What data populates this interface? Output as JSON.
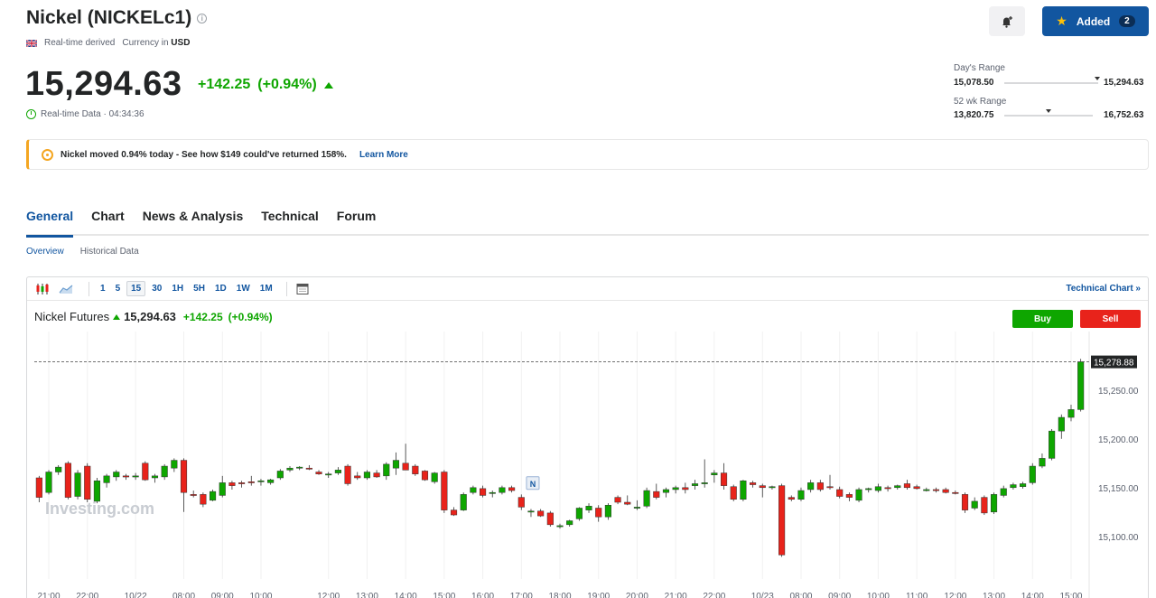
{
  "header": {
    "title": "Nickel (NICKELc1)",
    "realtime_label": "Real-time derived",
    "currency_label": "Currency in",
    "currency": "USD",
    "price": "15,294.63",
    "change": "+142.25",
    "change_pct": "(+0.94%)",
    "realtime_data": "Real-time Data · 04:34:36"
  },
  "actions": {
    "added_label": "Added",
    "added_count": "2"
  },
  "ranges": {
    "day_label": "Day's Range",
    "day_low": "15,078.50",
    "day_high": "15,294.63",
    "day_position": 0.99,
    "wk52_label": "52 wk Range",
    "wk52_low": "13,820.75",
    "wk52_high": "16,752.63",
    "wk52_position": 0.5
  },
  "banner": {
    "text": "Nickel moved 0.94% today - See how $149 could've returned 158%.",
    "link": "Learn More"
  },
  "tabs": [
    "General",
    "Chart",
    "News & Analysis",
    "Technical",
    "Forum"
  ],
  "active_tab": "General",
  "subtabs": [
    "Overview",
    "Historical Data"
  ],
  "toolbar": {
    "intervals": [
      "1",
      "5",
      "15",
      "30",
      "1H",
      "5H",
      "1D",
      "1W",
      "1M"
    ],
    "active_interval": "15",
    "technical_link": "Technical Chart »"
  },
  "quote": {
    "name": "Nickel Futures",
    "price": "15,294.63",
    "change": "+142.25",
    "change_pct": "(+0.94%)",
    "buy": "Buy",
    "sell": "Sell"
  },
  "colors": {
    "up": "#0ea600",
    "down": "#e8231b",
    "brand": "#1256a0"
  },
  "chart_data": {
    "type": "candlestick",
    "last_price_label": "15,278.88",
    "last_price": 15278.88,
    "news_marker": "N",
    "watermark": "Investing.com",
    "ylim": [
      15060,
      15310
    ],
    "y_ticks": [
      "15,250.00",
      "15,200.00",
      "15,150.00",
      "15,100.00"
    ],
    "y_tick_values": [
      15250,
      15200,
      15150,
      15100
    ],
    "x_ticks": [
      "21:00",
      "22:00",
      "10/22",
      "08:00",
      "09:00",
      "10:00",
      "12:00",
      "13:00",
      "14:00",
      "15:00",
      "16:00",
      "17:00",
      "18:00",
      "19:00",
      "20:00",
      "21:00",
      "22:00",
      "10/23",
      "08:00",
      "09:00",
      "10:00",
      "11:00",
      "12:00",
      "13:00",
      "14:00",
      "15:00"
    ],
    "x_tick_index": [
      1,
      5,
      10,
      15,
      19,
      23,
      30,
      34,
      38,
      42,
      46,
      50,
      54,
      58,
      62,
      66,
      70,
      75,
      79,
      83,
      87,
      91,
      95,
      99,
      103,
      107
    ],
    "candles": [
      {
        "o": 15160,
        "h": 15162,
        "l": 15135,
        "c": 15140
      },
      {
        "o": 15145,
        "h": 15168,
        "l": 15143,
        "c": 15166
      },
      {
        "o": 15166,
        "h": 15173,
        "l": 15163,
        "c": 15171
      },
      {
        "o": 15175,
        "h": 15177,
        "l": 15138,
        "c": 15140
      },
      {
        "o": 15141,
        "h": 15168,
        "l": 15138,
        "c": 15165
      },
      {
        "o": 15172,
        "h": 15175,
        "l": 15135,
        "c": 15138
      },
      {
        "o": 15136,
        "h": 15160,
        "l": 15134,
        "c": 15157
      },
      {
        "o": 15155,
        "h": 15164,
        "l": 15150,
        "c": 15162
      },
      {
        "o": 15161,
        "h": 15168,
        "l": 15157,
        "c": 15166
      },
      {
        "o": 15162,
        "h": 15164,
        "l": 15158,
        "c": 15161
      },
      {
        "o": 15162,
        "h": 15165,
        "l": 15158,
        "c": 15162
      },
      {
        "o": 15175,
        "h": 15177,
        "l": 15157,
        "c": 15158
      },
      {
        "o": 15160,
        "h": 15164,
        "l": 15155,
        "c": 15162
      },
      {
        "o": 15161,
        "h": 15174,
        "l": 15158,
        "c": 15172
      },
      {
        "o": 15170,
        "h": 15180,
        "l": 15166,
        "c": 15178
      },
      {
        "o": 15178,
        "h": 15180,
        "l": 15125,
        "c": 15145
      },
      {
        "o": 15143,
        "h": 15147,
        "l": 15140,
        "c": 15142
      },
      {
        "o": 15143,
        "h": 15145,
        "l": 15130,
        "c": 15133
      },
      {
        "o": 15137,
        "h": 15148,
        "l": 15136,
        "c": 15146
      },
      {
        "o": 15142,
        "h": 15162,
        "l": 15140,
        "c": 15155
      },
      {
        "o": 15155,
        "h": 15157,
        "l": 15148,
        "c": 15152
      },
      {
        "o": 15155,
        "h": 15157,
        "l": 15150,
        "c": 15154
      },
      {
        "o": 15156,
        "h": 15162,
        "l": 15152,
        "c": 15155
      },
      {
        "o": 15157,
        "h": 15159,
        "l": 15152,
        "c": 15157
      },
      {
        "o": 15155,
        "h": 15159,
        "l": 15153,
        "c": 15158
      },
      {
        "o": 15160,
        "h": 15169,
        "l": 15158,
        "c": 15167
      },
      {
        "o": 15168,
        "h": 15172,
        "l": 15166,
        "c": 15170
      },
      {
        "o": 15170,
        "h": 15172,
        "l": 15168,
        "c": 15171
      },
      {
        "o": 15170,
        "h": 15173,
        "l": 15168,
        "c": 15169
      },
      {
        "o": 15166,
        "h": 15168,
        "l": 15163,
        "c": 15164
      },
      {
        "o": 15163,
        "h": 15166,
        "l": 15160,
        "c": 15164
      },
      {
        "o": 15165,
        "h": 15171,
        "l": 15163,
        "c": 15168
      },
      {
        "o": 15172,
        "h": 15174,
        "l": 15152,
        "c": 15154
      },
      {
        "o": 15162,
        "h": 15166,
        "l": 15158,
        "c": 15160
      },
      {
        "o": 15160,
        "h": 15168,
        "l": 15158,
        "c": 15166
      },
      {
        "o": 15165,
        "h": 15168,
        "l": 15160,
        "c": 15161
      },
      {
        "o": 15162,
        "h": 15176,
        "l": 15158,
        "c": 15174
      },
      {
        "o": 15170,
        "h": 15186,
        "l": 15163,
        "c": 15178
      },
      {
        "o": 15175,
        "h": 15195,
        "l": 15168,
        "c": 15168
      },
      {
        "o": 15172,
        "h": 15174,
        "l": 15162,
        "c": 15164
      },
      {
        "o": 15167,
        "h": 15168,
        "l": 15157,
        "c": 15158
      },
      {
        "o": 15156,
        "h": 15166,
        "l": 15154,
        "c": 15165
      },
      {
        "o": 15166,
        "h": 15168,
        "l": 15124,
        "c": 15127
      },
      {
        "o": 15127,
        "h": 15130,
        "l": 15121,
        "c": 15122
      },
      {
        "o": 15127,
        "h": 15145,
        "l": 15126,
        "c": 15143
      },
      {
        "o": 15145,
        "h": 15152,
        "l": 15143,
        "c": 15150
      },
      {
        "o": 15149,
        "h": 15152,
        "l": 15140,
        "c": 15142
      },
      {
        "o": 15145,
        "h": 15147,
        "l": 15140,
        "c": 15145
      },
      {
        "o": 15145,
        "h": 15152,
        "l": 15143,
        "c": 15150
      },
      {
        "o": 15150,
        "h": 15152,
        "l": 15145,
        "c": 15147
      },
      {
        "o": 15140,
        "h": 15143,
        "l": 15127,
        "c": 15130
      },
      {
        "o": 15126,
        "h": 15128,
        "l": 15120,
        "c": 15126
      },
      {
        "o": 15126,
        "h": 15128,
        "l": 15120,
        "c": 15121
      },
      {
        "o": 15124,
        "h": 15126,
        "l": 15110,
        "c": 15112
      },
      {
        "o": 15110,
        "h": 15113,
        "l": 15108,
        "c": 15111
      },
      {
        "o": 15112,
        "h": 15117,
        "l": 15110,
        "c": 15116
      },
      {
        "o": 15118,
        "h": 15130,
        "l": 15116,
        "c": 15129
      },
      {
        "o": 15127,
        "h": 15134,
        "l": 15124,
        "c": 15131
      },
      {
        "o": 15129,
        "h": 15132,
        "l": 15115,
        "c": 15120
      },
      {
        "o": 15120,
        "h": 15134,
        "l": 15117,
        "c": 15132
      },
      {
        "o": 15140,
        "h": 15142,
        "l": 15133,
        "c": 15135
      },
      {
        "o": 15135,
        "h": 15142,
        "l": 15132,
        "c": 15133
      },
      {
        "o": 15130,
        "h": 15137,
        "l": 15127,
        "c": 15130
      },
      {
        "o": 15131,
        "h": 15150,
        "l": 15129,
        "c": 15147
      },
      {
        "o": 15146,
        "h": 15154,
        "l": 15138,
        "c": 15140
      },
      {
        "o": 15145,
        "h": 15150,
        "l": 15140,
        "c": 15148
      },
      {
        "o": 15148,
        "h": 15152,
        "l": 15144,
        "c": 15150
      },
      {
        "o": 15150,
        "h": 15155,
        "l": 15144,
        "c": 15148
      },
      {
        "o": 15152,
        "h": 15158,
        "l": 15148,
        "c": 15154
      },
      {
        "o": 15155,
        "h": 15179,
        "l": 15150,
        "c": 15155
      },
      {
        "o": 15163,
        "h": 15168,
        "l": 15155,
        "c": 15165
      },
      {
        "o": 15165,
        "h": 15175,
        "l": 15148,
        "c": 15152
      },
      {
        "o": 15151,
        "h": 15153,
        "l": 15136,
        "c": 15138
      },
      {
        "o": 15138,
        "h": 15158,
        "l": 15136,
        "c": 15157
      },
      {
        "o": 15155,
        "h": 15157,
        "l": 15150,
        "c": 15153
      },
      {
        "o": 15152,
        "h": 15154,
        "l": 15140,
        "c": 15150
      },
      {
        "o": 15150,
        "h": 15152,
        "l": 15148,
        "c": 15151
      },
      {
        "o": 15152,
        "h": 15154,
        "l": 15079,
        "c": 15081
      },
      {
        "o": 15140,
        "h": 15142,
        "l": 15136,
        "c": 15138
      },
      {
        "o": 15138,
        "h": 15150,
        "l": 15136,
        "c": 15147
      },
      {
        "o": 15148,
        "h": 15158,
        "l": 15145,
        "c": 15155
      },
      {
        "o": 15155,
        "h": 15158,
        "l": 15146,
        "c": 15148
      },
      {
        "o": 15151,
        "h": 15163,
        "l": 15148,
        "c": 15150
      },
      {
        "o": 15148,
        "h": 15151,
        "l": 15139,
        "c": 15141
      },
      {
        "o": 15143,
        "h": 15145,
        "l": 15136,
        "c": 15140
      },
      {
        "o": 15137,
        "h": 15150,
        "l": 15135,
        "c": 15148
      },
      {
        "o": 15148,
        "h": 15150,
        "l": 15145,
        "c": 15149
      },
      {
        "o": 15147,
        "h": 15154,
        "l": 15145,
        "c": 15151
      },
      {
        "o": 15150,
        "h": 15152,
        "l": 15146,
        "c": 15149
      },
      {
        "o": 15150,
        "h": 15153,
        "l": 15148,
        "c": 15152
      },
      {
        "o": 15154,
        "h": 15158,
        "l": 15148,
        "c": 15150
      },
      {
        "o": 15151,
        "h": 15153,
        "l": 15148,
        "c": 15149
      },
      {
        "o": 15148,
        "h": 15150,
        "l": 15146,
        "c": 15148
      },
      {
        "o": 15148,
        "h": 15150,
        "l": 15145,
        "c": 15147
      },
      {
        "o": 15148,
        "h": 15150,
        "l": 15144,
        "c": 15145
      },
      {
        "o": 15145,
        "h": 15147,
        "l": 15143,
        "c": 15144
      },
      {
        "o": 15143,
        "h": 15145,
        "l": 15124,
        "c": 15127
      },
      {
        "o": 15129,
        "h": 15140,
        "l": 15127,
        "c": 15136
      },
      {
        "o": 15140,
        "h": 15142,
        "l": 15122,
        "c": 15124
      },
      {
        "o": 15125,
        "h": 15145,
        "l": 15123,
        "c": 15143
      },
      {
        "o": 15142,
        "h": 15152,
        "l": 15140,
        "c": 15149
      },
      {
        "o": 15150,
        "h": 15155,
        "l": 15148,
        "c": 15153
      },
      {
        "o": 15151,
        "h": 15156,
        "l": 15149,
        "c": 15154
      },
      {
        "o": 15155,
        "h": 15175,
        "l": 15153,
        "c": 15172
      },
      {
        "o": 15172,
        "h": 15185,
        "l": 15170,
        "c": 15180
      },
      {
        "o": 15180,
        "h": 15210,
        "l": 15178,
        "c": 15208
      },
      {
        "o": 15208,
        "h": 15225,
        "l": 15200,
        "c": 15222
      },
      {
        "o": 15222,
        "h": 15235,
        "l": 15218,
        "c": 15230
      },
      {
        "o": 15230,
        "h": 15282,
        "l": 15228,
        "c": 15279
      }
    ]
  }
}
